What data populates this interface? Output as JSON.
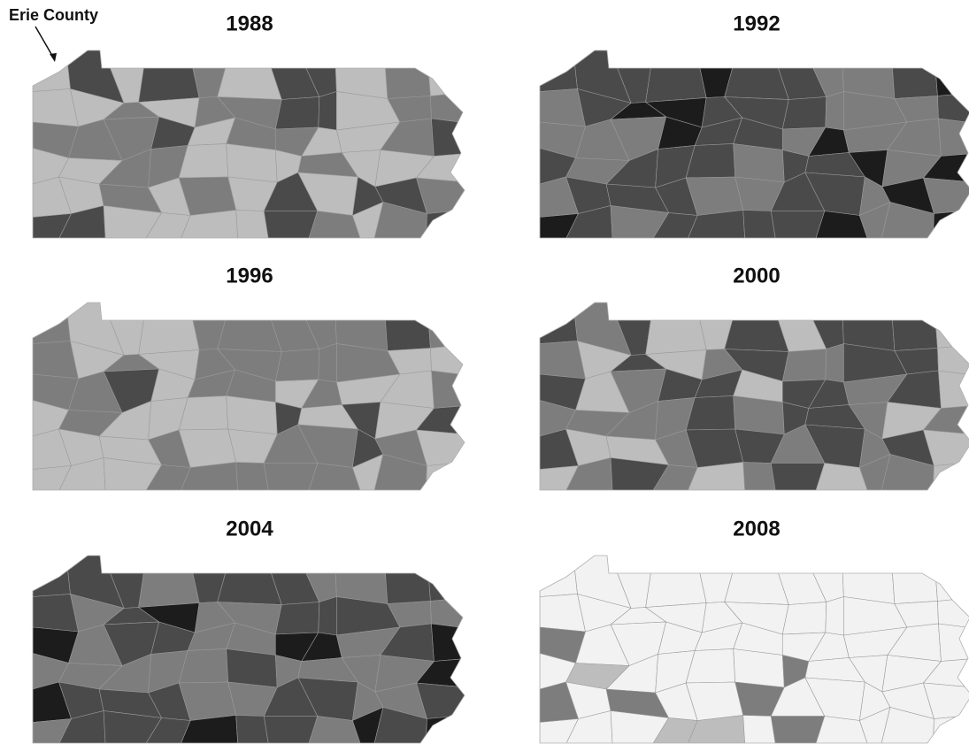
{
  "annotation": "Erie County",
  "maps": [
    {
      "title": "1988"
    },
    {
      "title": "1992"
    },
    {
      "title": "1996"
    },
    {
      "title": "2000"
    },
    {
      "title": "2004"
    },
    {
      "title": "2008"
    }
  ]
}
